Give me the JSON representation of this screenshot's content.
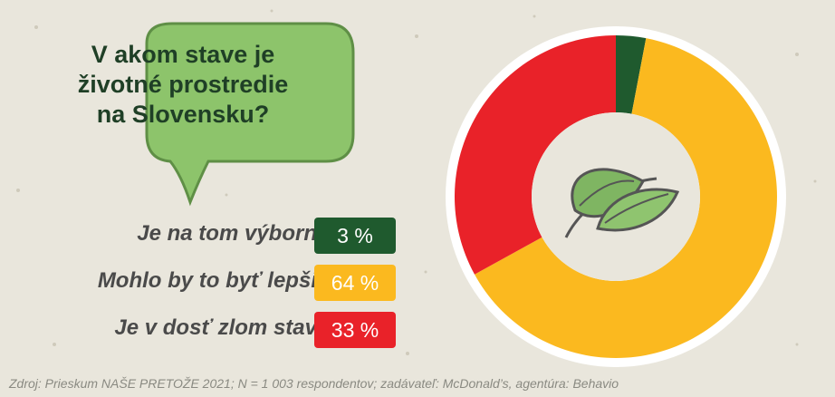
{
  "question": [
    "V akom stave je",
    "životné prostredie",
    "na Slovensku?"
  ],
  "source": "Zdroj: Prieskum NAŠE PRETOŽE 2021; N = 1 003 respondentov; zadávateľ: McDonald’s, agentúra: Behavio",
  "icon": "leaf-icon",
  "colors": {
    "excellent": "#1f5a2e",
    "better": "#fbb91f",
    "bad": "#e92229",
    "bubble": "#8dc46b"
  },
  "chart_data": {
    "type": "pie",
    "title": "V akom stave je životné prostredie na Slovensku?",
    "donut": true,
    "categories": [
      "Je na tom výborne.",
      "Mohlo by to byť lepšie.",
      "Je v dosť zlom stave."
    ],
    "values": [
      3,
      64,
      33
    ],
    "value_labels": [
      "3 %",
      "64 %",
      "33 %"
    ]
  }
}
